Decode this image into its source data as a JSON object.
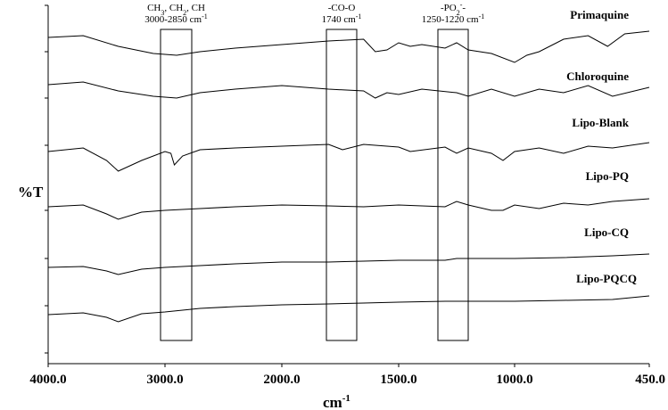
{
  "chart_data": {
    "type": "line",
    "title": "",
    "ylabel": "%T",
    "xlabel": "cm",
    "xlabel_sup": "-1",
    "xlim": [
      4000,
      450
    ],
    "x_axis_break_note": "non-linear wavenumber axis",
    "xticks": [
      {
        "value": 4000,
        "label": "4000.0"
      },
      {
        "value": 3000,
        "label": "3000.0"
      },
      {
        "value": 2000,
        "label": "2000.0"
      },
      {
        "value": 1500,
        "label": "1500.0"
      },
      {
        "value": 1000,
        "label": "1000.0"
      },
      {
        "value": 450,
        "label": "450.0"
      }
    ],
    "grid": false,
    "line_color": "#000000",
    "bands": [
      {
        "line1": "CH3, CH2, CH",
        "line1_parts": [
          [
            "CH",
            ""
          ],
          [
            "3",
            "sub"
          ],
          [
            ", CH",
            ""
          ],
          [
            "2",
            "sub"
          ],
          [
            ", CH",
            ""
          ]
        ],
        "line2": "3000-2850 cm-1",
        "line2_parts": [
          [
            "3000-2850 cm",
            ""
          ],
          [
            "-1",
            "sup"
          ]
        ],
        "x_from": 3000,
        "x_to": 2850
      },
      {
        "line1": "-CO-O",
        "line1_parts": [
          [
            "-CO-O",
            ""
          ]
        ],
        "line2": "1740 cm-1",
        "line2_parts": [
          [
            "1740 cm",
            ""
          ],
          [
            "-1",
            "sup"
          ]
        ],
        "x_from": 1780,
        "x_to": 1700
      },
      {
        "line1": "-PO2--",
        "line1_parts": [
          [
            "-PO",
            ""
          ],
          [
            "2",
            "sub"
          ],
          [
            "-",
            "sup"
          ],
          [
            "-",
            ""
          ]
        ],
        "line2": "1250-1220 cm-1",
        "line2_parts": [
          [
            "1250-1220 cm",
            ""
          ],
          [
            "-1",
            "sup"
          ]
        ],
        "x_from": 1250,
        "x_to": 1220
      }
    ],
    "series": [
      {
        "name": "Primaquine",
        "values": [
          [
            4000,
            42
          ],
          [
            3700,
            40
          ],
          [
            3400,
            52
          ],
          [
            3100,
            60
          ],
          [
            2900,
            62
          ],
          [
            2700,
            58
          ],
          [
            2400,
            54
          ],
          [
            2000,
            50
          ],
          [
            1800,
            46
          ],
          [
            1650,
            44
          ],
          [
            1600,
            58
          ],
          [
            1550,
            56
          ],
          [
            1500,
            48
          ],
          [
            1450,
            52
          ],
          [
            1400,
            50
          ],
          [
            1300,
            54
          ],
          [
            1250,
            48
          ],
          [
            1200,
            56
          ],
          [
            1100,
            60
          ],
          [
            1000,
            70
          ],
          [
            950,
            62
          ],
          [
            900,
            58
          ],
          [
            800,
            44
          ],
          [
            700,
            40
          ],
          [
            620,
            52
          ],
          [
            550,
            38
          ],
          [
            450,
            35
          ]
        ]
      },
      {
        "name": "Chloroquine",
        "values": [
          [
            4000,
            95
          ],
          [
            3700,
            92
          ],
          [
            3400,
            102
          ],
          [
            3100,
            108
          ],
          [
            2900,
            110
          ],
          [
            2700,
            104
          ],
          [
            2400,
            100
          ],
          [
            2000,
            96
          ],
          [
            1800,
            100
          ],
          [
            1650,
            102
          ],
          [
            1600,
            110
          ],
          [
            1550,
            104
          ],
          [
            1500,
            106
          ],
          [
            1400,
            100
          ],
          [
            1250,
            104
          ],
          [
            1200,
            108
          ],
          [
            1100,
            100
          ],
          [
            1000,
            108
          ],
          [
            900,
            100
          ],
          [
            800,
            104
          ],
          [
            700,
            96
          ],
          [
            600,
            108
          ],
          [
            450,
            98
          ]
        ]
      },
      {
        "name": "Lipo-Blank",
        "values": [
          [
            4000,
            170
          ],
          [
            3700,
            166
          ],
          [
            3500,
            180
          ],
          [
            3400,
            192
          ],
          [
            3200,
            180
          ],
          [
            3000,
            170
          ],
          [
            2950,
            172
          ],
          [
            2920,
            185
          ],
          [
            2850,
            175
          ],
          [
            2700,
            168
          ],
          [
            2400,
            166
          ],
          [
            2000,
            164
          ],
          [
            1800,
            162
          ],
          [
            1740,
            168
          ],
          [
            1650,
            162
          ],
          [
            1500,
            165
          ],
          [
            1450,
            170
          ],
          [
            1300,
            165
          ],
          [
            1250,
            172
          ],
          [
            1200,
            166
          ],
          [
            1100,
            172
          ],
          [
            1050,
            180
          ],
          [
            1000,
            170
          ],
          [
            900,
            166
          ],
          [
            800,
            172
          ],
          [
            700,
            164
          ],
          [
            600,
            166
          ],
          [
            450,
            160
          ]
        ]
      },
      {
        "name": "Lipo-PQ",
        "values": [
          [
            4000,
            232
          ],
          [
            3700,
            230
          ],
          [
            3500,
            240
          ],
          [
            3400,
            246
          ],
          [
            3200,
            238
          ],
          [
            3000,
            236
          ],
          [
            2700,
            234
          ],
          [
            2400,
            232
          ],
          [
            2000,
            230
          ],
          [
            1800,
            231
          ],
          [
            1650,
            232
          ],
          [
            1500,
            230
          ],
          [
            1300,
            232
          ],
          [
            1250,
            226
          ],
          [
            1200,
            230
          ],
          [
            1100,
            236
          ],
          [
            1050,
            236
          ],
          [
            1000,
            230
          ],
          [
            900,
            234
          ],
          [
            800,
            228
          ],
          [
            700,
            230
          ],
          [
            600,
            226
          ],
          [
            450,
            223
          ]
        ]
      },
      {
        "name": "Lipo-CQ",
        "values": [
          [
            4000,
            300
          ],
          [
            3700,
            299
          ],
          [
            3500,
            304
          ],
          [
            3400,
            308
          ],
          [
            3200,
            302
          ],
          [
            3000,
            300
          ],
          [
            2700,
            298
          ],
          [
            2400,
            296
          ],
          [
            2000,
            294
          ],
          [
            1800,
            294
          ],
          [
            1650,
            293
          ],
          [
            1500,
            292
          ],
          [
            1300,
            292
          ],
          [
            1250,
            290
          ],
          [
            1000,
            290
          ],
          [
            800,
            289
          ],
          [
            600,
            287
          ],
          [
            450,
            285
          ]
        ]
      },
      {
        "name": "Lipo-PQCQ",
        "values": [
          [
            4000,
            353
          ],
          [
            3700,
            351
          ],
          [
            3500,
            356
          ],
          [
            3400,
            361
          ],
          [
            3200,
            352
          ],
          [
            3000,
            350
          ],
          [
            2700,
            346
          ],
          [
            2400,
            344
          ],
          [
            2000,
            342
          ],
          [
            1800,
            341
          ],
          [
            1650,
            340
          ],
          [
            1500,
            339
          ],
          [
            1300,
            338
          ],
          [
            1250,
            338
          ],
          [
            1000,
            338
          ],
          [
            800,
            337
          ],
          [
            600,
            336
          ],
          [
            450,
            332
          ]
        ]
      }
    ]
  }
}
